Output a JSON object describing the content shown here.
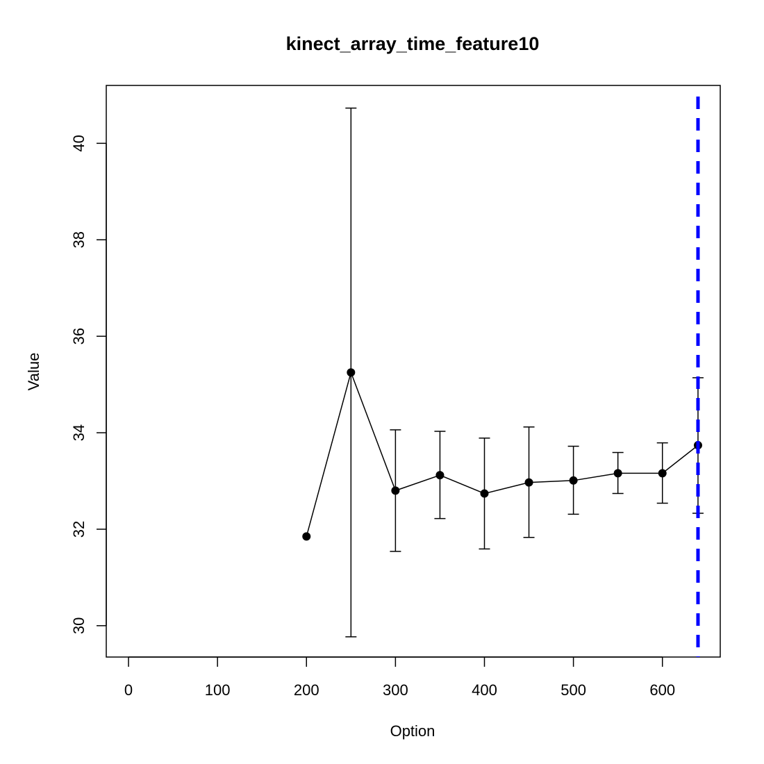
{
  "chart_data": {
    "type": "line",
    "title": "kinect_array_time_feature10",
    "xlabel": "Option",
    "ylabel": "Value",
    "xlim": [
      -25,
      665
    ],
    "ylim": [
      29.35,
      41.2
    ],
    "x_ticks": [
      0,
      100,
      200,
      300,
      400,
      500,
      600
    ],
    "y_ticks": [
      30,
      32,
      34,
      36,
      38,
      40
    ],
    "series": [
      {
        "x": [
          200,
          250,
          300,
          350,
          400,
          450,
          500,
          550,
          600,
          640
        ],
        "values": [
          31.85,
          35.25,
          32.8,
          33.12,
          32.74,
          32.97,
          33.01,
          33.16,
          33.16,
          33.74
        ],
        "error_low": [
          null,
          29.77,
          31.54,
          32.22,
          31.59,
          31.83,
          32.31,
          32.74,
          32.54,
          32.33
        ],
        "error_high": [
          null,
          40.73,
          34.06,
          34.03,
          33.89,
          34.12,
          33.72,
          33.59,
          33.79,
          35.14
        ]
      }
    ],
    "reference_line": {
      "x": 640,
      "color": "#0000ff",
      "style": "dashed"
    },
    "grid": false,
    "legend": "none",
    "colors": {
      "series": "#000000",
      "reference": "#0000ff"
    }
  }
}
